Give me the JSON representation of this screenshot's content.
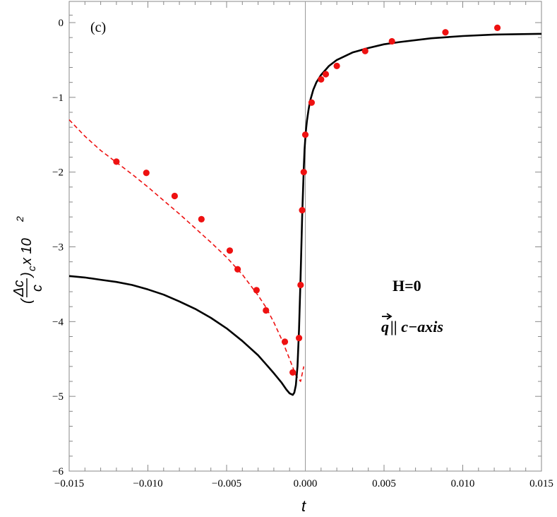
{
  "chart_data": {
    "type": "scatter",
    "panel_label": "(c)",
    "xlabel": "t",
    "ylabel": {
      "numerator": "Δc",
      "denominator": "c",
      "open_paren": "(",
      "close_paren": ")",
      "subscript": "c",
      "times": " x 10",
      "exponent": "2"
    },
    "xlim": [
      -0.015,
      0.015
    ],
    "ylim": [
      -6,
      0.12
    ],
    "x_ticks": [
      -0.015,
      -0.01,
      -0.005,
      0.0,
      0.005,
      0.01,
      0.015
    ],
    "x_tick_labels": [
      "−0.015",
      "−0.010",
      "−0.005",
      "0.000",
      "0.005",
      "0.010",
      "0.015"
    ],
    "y_ticks": [
      0,
      -1,
      -2,
      -3,
      -4,
      -5,
      -6
    ],
    "y_tick_labels": [
      "0",
      "−1",
      "−2",
      "−3",
      "−4",
      "−5",
      "−6"
    ],
    "annotations": {
      "field": "H=0",
      "direction_vector": "q",
      "direction_rest": " || c−axis"
    },
    "series": [
      {
        "style": "points",
        "color": "#ee1111",
        "x": [
          -0.012,
          -0.0101,
          -0.0083,
          -0.0066,
          -0.0048,
          -0.0043,
          -0.0031,
          -0.0025,
          -0.0013,
          -0.0004,
          -0.0008,
          -0.0003,
          -0.0002,
          -0.0001,
          0.0,
          0.0004,
          0.001,
          0.0013,
          0.002,
          0.0038,
          0.0055,
          0.0089,
          0.0122
        ],
        "y": [
          -1.86,
          -2.01,
          -2.32,
          -2.63,
          -3.05,
          -3.3,
          -3.58,
          -3.85,
          -4.27,
          -4.22,
          -4.68,
          -3.51,
          -2.51,
          -2.0,
          -1.5,
          -1.07,
          -0.76,
          -0.69,
          -0.58,
          -0.38,
          -0.25,
          -0.13,
          -0.07
        ]
      },
      {
        "style": "dashed-line",
        "color": "#ee1111",
        "x": [
          -0.015,
          -0.014,
          -0.013,
          -0.012,
          -0.011,
          -0.01,
          -0.009,
          -0.008,
          -0.007,
          -0.006,
          -0.005,
          -0.004,
          -0.003,
          -0.0025,
          -0.002,
          -0.0015,
          -0.001,
          -0.0006,
          -0.0003,
          -0.0001
        ],
        "y": [
          -1.3,
          -1.52,
          -1.71,
          -1.87,
          -2.03,
          -2.2,
          -2.38,
          -2.56,
          -2.75,
          -2.94,
          -3.14,
          -3.37,
          -3.65,
          -3.81,
          -4.01,
          -4.24,
          -4.5,
          -4.72,
          -4.8,
          -4.6
        ]
      },
      {
        "style": "solid-line",
        "color": "#000000",
        "x": [
          -0.015,
          -0.014,
          -0.013,
          -0.012,
          -0.011,
          -0.01,
          -0.009,
          -0.008,
          -0.007,
          -0.006,
          -0.005,
          -0.004,
          -0.003,
          -0.0025,
          -0.002,
          -0.0015,
          -0.0012,
          -0.001,
          -0.0008,
          -0.0007,
          -0.0006,
          -0.0005,
          -0.0004,
          -0.0003,
          -0.0002,
          -0.0001,
          -5e-05,
          0.0,
          5e-05,
          0.0001,
          0.0002,
          0.0003,
          0.0005,
          0.0007,
          0.001,
          0.0015,
          0.002,
          0.003,
          0.004,
          0.005,
          0.006,
          0.008,
          0.01,
          0.012,
          0.015
        ],
        "y": [
          -3.39,
          -3.41,
          -3.44,
          -3.47,
          -3.51,
          -3.57,
          -3.64,
          -3.73,
          -3.83,
          -3.95,
          -4.09,
          -4.26,
          -4.45,
          -4.57,
          -4.69,
          -4.82,
          -4.91,
          -4.96,
          -4.98,
          -4.95,
          -4.85,
          -4.6,
          -4.1,
          -3.4,
          -2.6,
          -1.95,
          -1.7,
          -1.55,
          -1.42,
          -1.32,
          -1.17,
          -1.05,
          -0.9,
          -0.8,
          -0.7,
          -0.58,
          -0.5,
          -0.4,
          -0.34,
          -0.29,
          -0.26,
          -0.21,
          -0.18,
          -0.16,
          -0.15
        ]
      }
    ]
  }
}
